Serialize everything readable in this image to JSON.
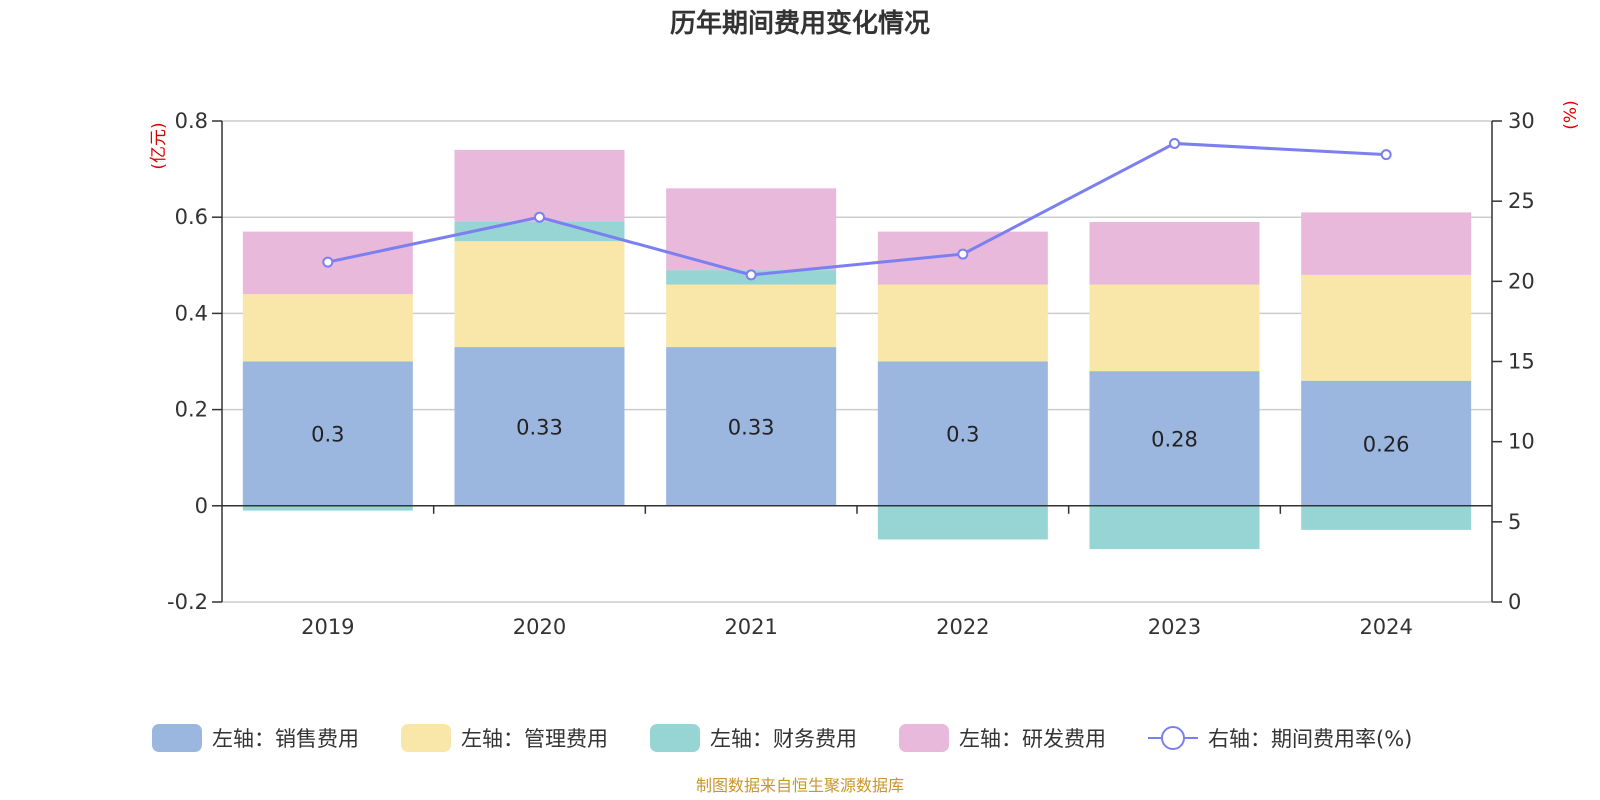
{
  "chart_data": {
    "type": "bar",
    "title": "历年期间费用变化情况",
    "categories": [
      "2019",
      "2020",
      "2021",
      "2022",
      "2023",
      "2024"
    ],
    "left_axis": {
      "unit": "(亿元)",
      "ylim": [
        -0.2,
        0.8
      ],
      "ticks": [
        {
          "value": -0.2,
          "label": "-0.2"
        },
        {
          "value": 0,
          "label": "0"
        },
        {
          "value": 0.2,
          "label": "0.2"
        },
        {
          "value": 0.4,
          "label": "0.4"
        },
        {
          "value": 0.6,
          "label": "0.6"
        },
        {
          "value": 0.8,
          "label": "0.8"
        }
      ]
    },
    "right_axis": {
      "unit": "(%)",
      "ylim": [
        0,
        30
      ],
      "ticks": [
        {
          "value": 0,
          "label": "0"
        },
        {
          "value": 5,
          "label": "5"
        },
        {
          "value": 10,
          "label": "10"
        },
        {
          "value": 15,
          "label": "15"
        },
        {
          "value": 20,
          "label": "20"
        },
        {
          "value": 25,
          "label": "25"
        },
        {
          "value": 30,
          "label": "30"
        }
      ]
    },
    "series": [
      {
        "name": "左轴：销售费用",
        "axis": "left",
        "type": "bar",
        "color": "#9bb7e0",
        "values": [
          0.3,
          0.33,
          0.33,
          0.3,
          0.28,
          0.26
        ],
        "value_labels": [
          "0.3",
          "0.33",
          "0.33",
          "0.3",
          "0.28",
          "0.26"
        ]
      },
      {
        "name": "左轴：管理费用",
        "axis": "left",
        "type": "bar",
        "color": "#f8e7a8",
        "values": [
          0.14,
          0.22,
          0.13,
          0.16,
          0.18,
          0.22
        ]
      },
      {
        "name": "左轴：财务费用",
        "axis": "left",
        "type": "bar",
        "color": "#97d4d4",
        "values": [
          -0.01,
          0.04,
          0.03,
          -0.07,
          -0.09,
          -0.05
        ]
      },
      {
        "name": "左轴：研发费用",
        "axis": "left",
        "type": "bar",
        "color": "#e8b9da",
        "values": [
          0.13,
          0.15,
          0.17,
          0.11,
          0.13,
          0.13
        ]
      },
      {
        "name": "右轴：期间费用率(%)",
        "axis": "right",
        "type": "line",
        "color": "#7b7ff0",
        "values": [
          21.2,
          24.0,
          20.4,
          21.7,
          28.6,
          27.9
        ]
      }
    ],
    "grid": true,
    "legend_position": "bottom"
  },
  "footer": {
    "source": "制图数据来自恒生聚源数据库"
  }
}
